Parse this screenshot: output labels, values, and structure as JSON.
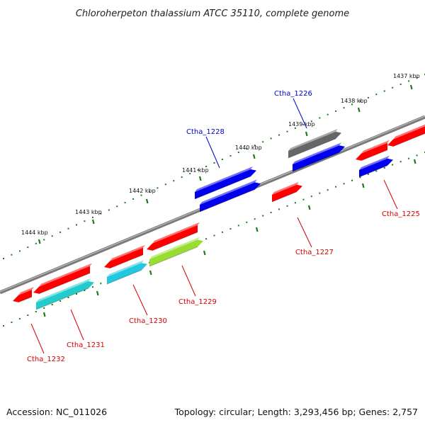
{
  "title": "Chloroherpeton thalassium ATCC 35110, complete genome",
  "footer": {
    "accession": "Accession: NC_011026",
    "summary": "Topology: circular; Length: 3,293,456 bp; Genes: 2,757"
  },
  "colors": {
    "red": "#ff0000",
    "blue": "#0000ee",
    "gray": "#666666",
    "cyan": "#22c8e0",
    "teal": "#22cccc",
    "lime": "#99dd33",
    "tick_green": "#1a7a1a",
    "label_red": "#d40000",
    "label_blue": "#0000cc"
  },
  "kbp_labels": [
    "1437 kbp",
    "1438 kbp",
    "1439 kbp",
    "1440 kbp",
    "1441 kbp",
    "1442 kbp",
    "1443 kbp",
    "1444 kbp"
  ],
  "gene_labels": [
    {
      "text": "Ctha_1226",
      "color": "blue"
    },
    {
      "text": "Ctha_1228",
      "color": "blue"
    },
    {
      "text": "Ctha_1225",
      "color": "red"
    },
    {
      "text": "Ctha_1227",
      "color": "red"
    },
    {
      "text": "Ctha_1229",
      "color": "red"
    },
    {
      "text": "Ctha_1230",
      "color": "red"
    },
    {
      "text": "Ctha_1231",
      "color": "red"
    },
    {
      "text": "Ctha_1232",
      "color": "red"
    }
  ]
}
